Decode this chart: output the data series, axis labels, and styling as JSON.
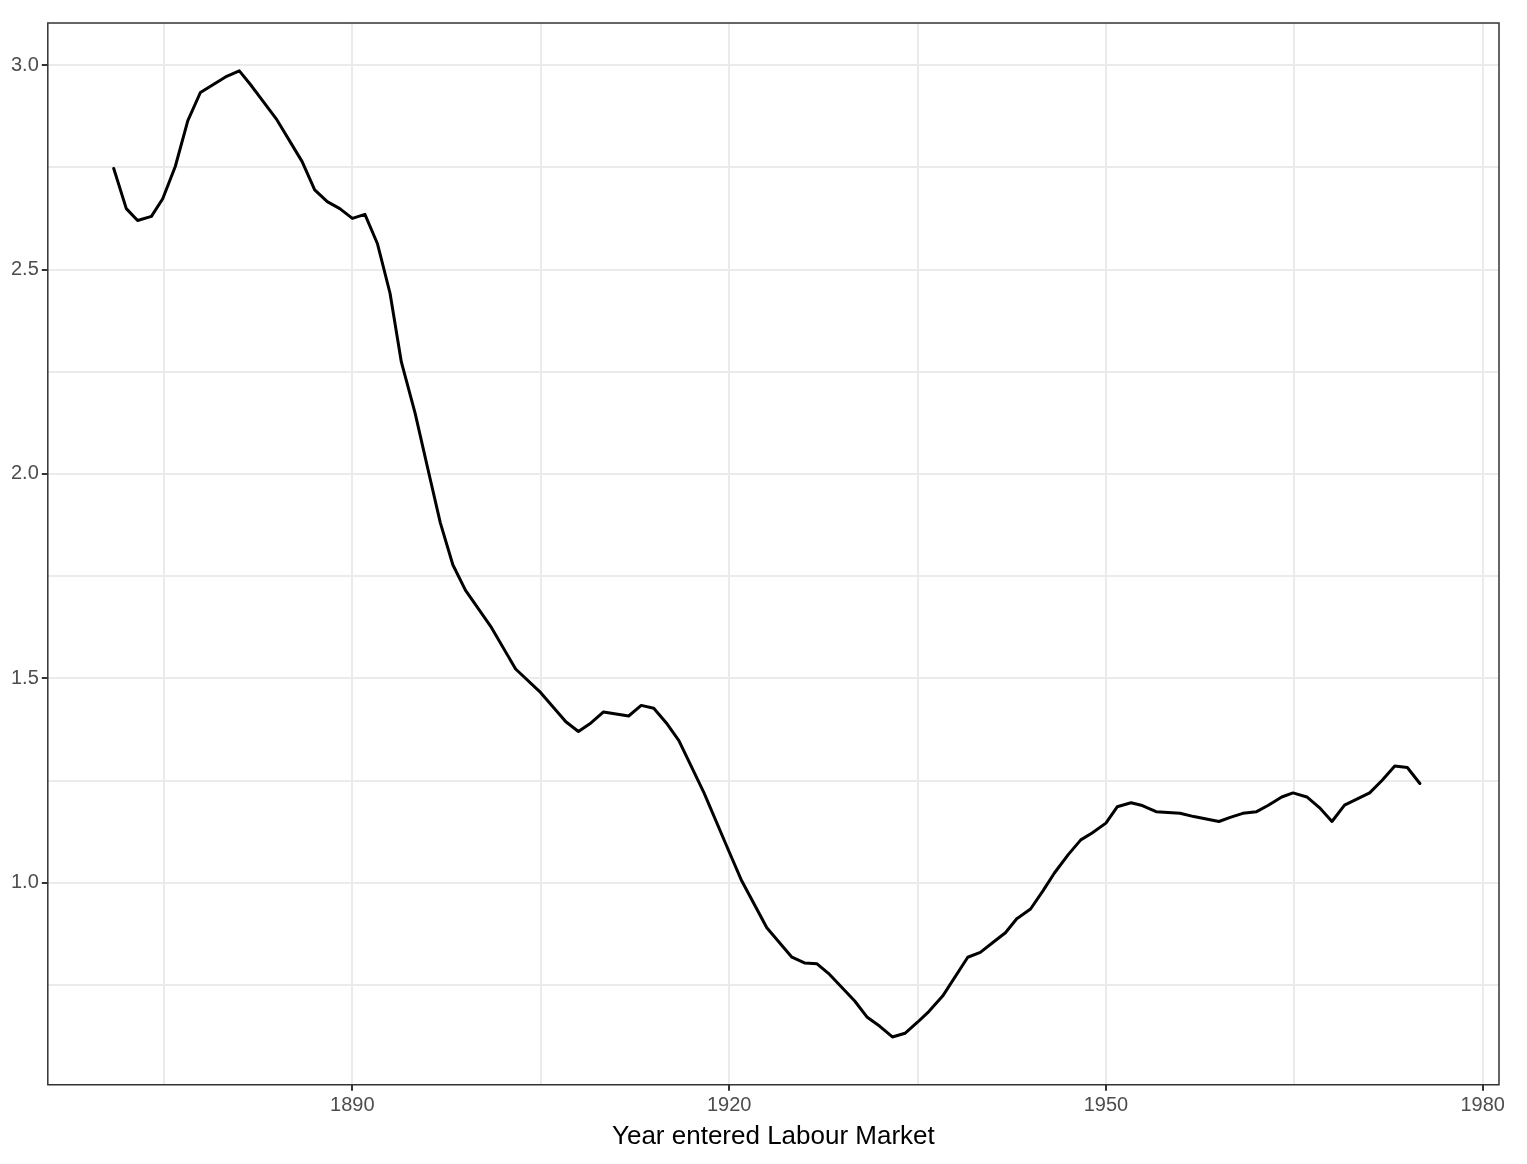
{
  "chart_data": {
    "type": "line",
    "xlabel": "Year entered Labour Market",
    "xlim": [
      1865.75,
      1981.3
    ],
    "ylim": [
      0.506,
      3.103
    ],
    "xticks": [
      {
        "value": 1875,
        "label": null
      },
      1890,
      {
        "value": 1905,
        "label": null
      },
      1920,
      {
        "value": 1935,
        "label": null
      },
      1950,
      {
        "value": 1965,
        "label": null
      },
      1980
    ],
    "yticks": [
      {
        "value": 0.75,
        "label": null
      },
      {
        "value": 1,
        "label": "1.0"
      },
      {
        "value": 1.25,
        "label": null
      },
      1.5,
      {
        "value": 1.75,
        "label": null
      },
      {
        "value": 2,
        "label": "2.0"
      },
      {
        "value": 2.25,
        "label": null
      },
      2.5,
      {
        "value": 2.75,
        "label": null
      },
      {
        "value": 3,
        "label": "3.0"
      }
    ],
    "grid": true,
    "legend": false,
    "marker": "none",
    "line_style": "solid",
    "series": [
      {
        "color": "#000000",
        "x": [
          1871,
          1872,
          1872.9,
          1874,
          1874.9,
          1875.9,
          1876.9,
          1877.9,
          1879.9,
          1881,
          1881.9,
          1883,
          1884,
          1886,
          1887,
          1888,
          1889,
          1890,
          1891,
          1892,
          1893,
          1893.9,
          1895,
          1896,
          1897,
          1898,
          1899,
          1901,
          1903,
          1905,
          1907,
          1908,
          1909,
          1910,
          1912,
          1913,
          1914,
          1915,
          1916,
          1918,
          1920,
          1921,
          1923,
          1925,
          1926,
          1927,
          1928,
          1930,
          1931,
          1932,
          1933,
          1934,
          1935,
          1935.9,
          1937,
          1939,
          1940,
          1941,
          1942,
          1942.9,
          1944,
          1945,
          1945.9,
          1947,
          1948,
          1948.9,
          1950,
          1950.9,
          1952,
          1952.9,
          1954,
          1955.9,
          1957,
          1959,
          1959.9,
          1960.9,
          1962,
          1962.9,
          1964,
          1964.9,
          1966,
          1967,
          1968,
          1969,
          1971,
          1972,
          1973,
          1974,
          1975
        ],
        "values": [
          2.747,
          2.649,
          2.62,
          2.63,
          2.673,
          2.752,
          2.864,
          2.933,
          2.971,
          2.986,
          2.952,
          2.907,
          2.866,
          2.764,
          2.695,
          2.666,
          2.649,
          2.625,
          2.635,
          2.563,
          2.442,
          2.274,
          2.148,
          2.014,
          1.881,
          1.778,
          1.716,
          1.628,
          1.523,
          1.465,
          1.394,
          1.37,
          1.391,
          1.418,
          1.408,
          1.434,
          1.427,
          1.391,
          1.348,
          1.22,
          1.076,
          1.005,
          0.89,
          0.818,
          0.804,
          0.802,
          0.776,
          0.711,
          0.671,
          0.649,
          0.623,
          0.632,
          0.659,
          0.685,
          0.723,
          0.818,
          0.83,
          0.854,
          0.878,
          0.912,
          0.936,
          0.981,
          1.024,
          1.069,
          1.105,
          1.122,
          1.146,
          1.186,
          1.196,
          1.189,
          1.174,
          1.17,
          1.162,
          1.15,
          1.16,
          1.17,
          1.174,
          1.189,
          1.21,
          1.22,
          1.21,
          1.184,
          1.15,
          1.19,
          1.22,
          1.251,
          1.286,
          1.282,
          1.243
        ]
      }
    ]
  }
}
